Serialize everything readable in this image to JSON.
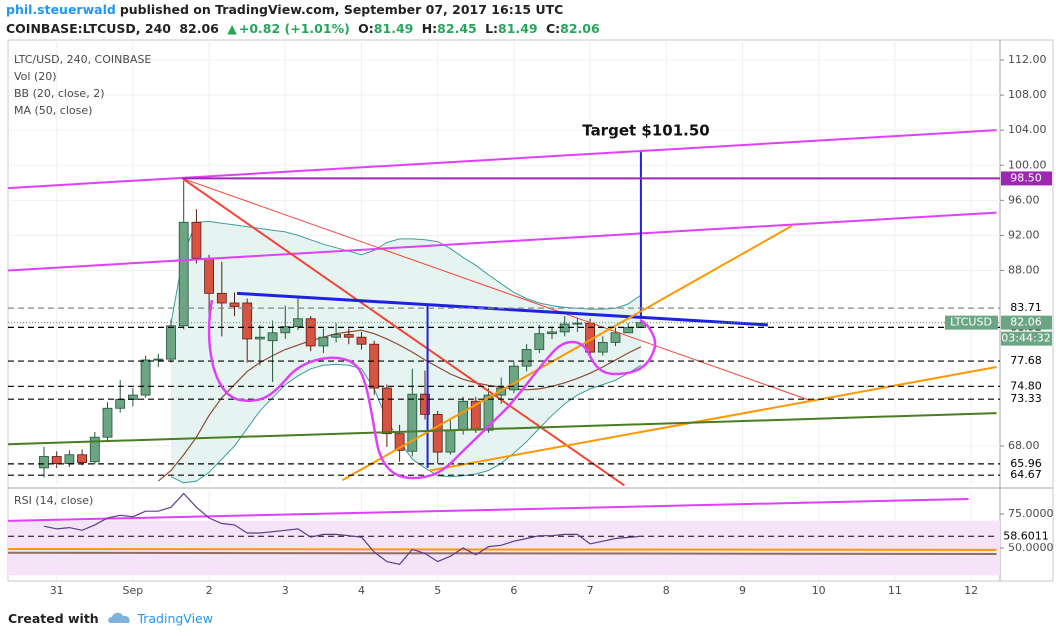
{
  "header": {
    "author": "phil.steuerwald",
    "published": "published on TradingView.com, September 07, 2017 16:15 UTC",
    "symbol": "COINBASE:LTCUSD, 240",
    "price": "82.06",
    "change": "+0.82 (+1.01%)",
    "ohlc": [
      [
        "O:",
        "81.49"
      ],
      [
        "H:",
        "82.45"
      ],
      [
        "L:",
        "81.49"
      ],
      [
        "C:",
        "82.06"
      ]
    ]
  },
  "footer": {
    "created": "Created with",
    "brand": "TradingView"
  },
  "chart_data": {
    "type": "candlestick",
    "title": "LTC/USD, 240, COINBASE",
    "indicators": [
      "Vol (20)",
      "BB (20, close, 2)",
      "MA (50, close)"
    ],
    "categories": [
      null,
      "31",
      null,
      null,
      null,
      null,
      null,
      "Sep",
      null,
      null,
      null,
      null,
      null,
      "2",
      null,
      null,
      null,
      null,
      null,
      "3",
      null,
      null,
      null,
      null,
      null,
      "4",
      null,
      null,
      null,
      null,
      null,
      "5",
      null,
      null,
      null,
      null,
      null,
      "6",
      null,
      null,
      null,
      null,
      null,
      "7",
      null,
      null,
      null,
      null,
      null,
      "8",
      null,
      null,
      null,
      null,
      null,
      "9",
      null,
      null,
      null,
      null,
      null,
      "10",
      null,
      null,
      null,
      null,
      null,
      "11",
      null,
      null,
      null,
      null,
      null,
      "12"
    ],
    "open": [
      65.5,
      66.8,
      66.0,
      67.0,
      66.2,
      69.0,
      72.3,
      73.3,
      73.8,
      77.8,
      77.9,
      81.7,
      93.5,
      89.4,
      85.4,
      84.3,
      84.3,
      80.2,
      80.0,
      80.9,
      81.6,
      82.5,
      79.4,
      80.4,
      80.7,
      80.4,
      79.6,
      74.6,
      69.4,
      67.4,
      73.9,
      71.6,
      67.3,
      69.8,
      73.1,
      69.8,
      73.8,
      74.4,
      77.1,
      79.0,
      80.8,
      81.0,
      81.9,
      82.0,
      78.7,
      79.8,
      80.9,
      81.49,
      null,
      null,
      null,
      null,
      null,
      null,
      null,
      null,
      null,
      null,
      null,
      null,
      null,
      null,
      null,
      null,
      null,
      null,
      null,
      null,
      null,
      null,
      null,
      null,
      null,
      null
    ],
    "high": [
      67.9,
      67.4,
      67.5,
      67.6,
      69.6,
      73.0,
      75.5,
      74.6,
      78.3,
      78.5,
      82.4,
      98.2,
      95.0,
      89.8,
      89.0,
      85.5,
      84.8,
      81.8,
      82.3,
      84.0,
      84.9,
      82.8,
      81.4,
      82.0,
      81.4,
      81.0,
      80.0,
      75.0,
      70.4,
      76.8,
      76.6,
      72.0,
      71.0,
      73.6,
      73.6,
      74.6,
      75.8,
      77.6,
      79.6,
      81.8,
      81.6,
      82.8,
      82.6,
      82.5,
      80.5,
      81.5,
      82.0,
      82.45,
      null,
      null,
      null,
      null,
      null,
      null,
      null,
      null,
      null,
      null,
      null,
      null,
      null,
      null,
      null,
      null,
      null,
      null,
      null,
      null,
      null,
      null,
      null,
      null,
      null,
      null
    ],
    "low": [
      64.4,
      65.5,
      65.6,
      65.8,
      65.9,
      68.6,
      71.8,
      72.5,
      73.5,
      77.0,
      77.5,
      81.3,
      88.8,
      83.0,
      80.5,
      82.8,
      77.5,
      77.2,
      75.3,
      80.2,
      81.2,
      78.8,
      78.6,
      79.8,
      79.6,
      79.0,
      73.8,
      67.9,
      66.2,
      66.8,
      71.0,
      66.0,
      67.0,
      69.3,
      69.5,
      69.5,
      72.8,
      74.0,
      76.5,
      78.6,
      80.2,
      80.5,
      81.0,
      78.2,
      78.3,
      79.4,
      80.9,
      81.49,
      null,
      null,
      null,
      null,
      null,
      null,
      null,
      null,
      null,
      null,
      null,
      null,
      null,
      null,
      null,
      null,
      null,
      null,
      null,
      null,
      null,
      null,
      null,
      null,
      null,
      null
    ],
    "close": [
      66.8,
      66.0,
      67.0,
      66.1,
      69.0,
      72.3,
      73.3,
      73.8,
      77.8,
      77.9,
      81.7,
      93.5,
      89.4,
      85.4,
      84.3,
      83.9,
      80.2,
      80.4,
      80.9,
      81.6,
      82.5,
      79.4,
      80.4,
      80.7,
      80.4,
      79.6,
      74.6,
      69.4,
      67.5,
      73.9,
      71.6,
      67.3,
      69.8,
      73.1,
      69.8,
      73.8,
      74.6,
      77.1,
      79.0,
      80.8,
      81.0,
      81.9,
      82.0,
      78.7,
      79.8,
      80.9,
      81.49,
      82.06,
      null,
      null,
      null,
      null,
      null,
      null,
      null,
      null,
      null,
      null,
      null,
      null,
      null,
      null,
      null,
      null,
      null,
      null,
      null,
      null,
      null,
      null,
      null,
      null,
      null,
      null
    ],
    "colors": {
      "up": "#6ba583",
      "up_edge": "#225437",
      "down": "#d75442",
      "down_edge": "#5b1a13"
    },
    "ma": {
      "color": "#8d4a35",
      "values": [
        null,
        null,
        null,
        null,
        null,
        null,
        null,
        null,
        null,
        64.0,
        65.2,
        67,
        69,
        71.5,
        73.5,
        75,
        76.5,
        77.5,
        78.3,
        79,
        79.5,
        80,
        80.4,
        80.8,
        81.0,
        81.2,
        80.8,
        80.2,
        79.5,
        78.7,
        77.8,
        77,
        76.2,
        75.6,
        75.2,
        74.9,
        74.7,
        74.5,
        74.4,
        74.5,
        74.8,
        75.2,
        75.7,
        76.3,
        77,
        77.8,
        78.6,
        79.3,
        null,
        null,
        null,
        null,
        null,
        null,
        null,
        null,
        null,
        null,
        null,
        null,
        null,
        null,
        null,
        null,
        null,
        null,
        null,
        null,
        null,
        null,
        null,
        null,
        null,
        null
      ]
    },
    "bb": {
      "color": "#3a9e9a",
      "fill": "#e6f4f1",
      "upper": [
        null,
        null,
        null,
        null,
        null,
        null,
        null,
        null,
        null,
        null,
        82,
        90,
        93.5,
        93.6,
        93.4,
        93.2,
        93,
        92.8,
        92.6,
        92.4,
        92,
        91.5,
        91,
        90.6,
        90.2,
        89.8,
        90.3,
        91.2,
        91.6,
        91.6,
        91.5,
        91.3,
        90.5,
        89.5,
        88.6,
        87.5,
        86.5,
        85.5,
        84.8,
        84.3,
        84.0,
        83.8,
        83.7,
        83.6,
        83.6,
        83.7,
        84.2,
        85.2,
        null,
        null,
        null,
        null,
        null,
        null,
        null,
        null,
        null,
        null,
        null,
        null,
        null,
        null,
        null,
        null,
        null,
        null,
        null,
        null,
        null,
        null,
        null,
        null,
        null,
        null
      ],
      "lower": [
        null,
        null,
        null,
        null,
        null,
        null,
        null,
        null,
        null,
        null,
        64.5,
        63.8,
        64,
        65,
        66.5,
        68,
        70,
        72,
        73.5,
        75,
        76,
        76.8,
        77.2,
        77.3,
        77.2,
        76.8,
        74.5,
        71,
        68.5,
        66.5,
        65.5,
        64.6,
        64.5,
        64.6,
        64.8,
        65.2,
        66,
        67.2,
        68.5,
        70,
        71.5,
        72.8,
        73.8,
        74.5,
        75,
        75.5,
        76.3,
        77.2,
        null,
        null,
        null,
        null,
        null,
        null,
        null,
        null,
        null,
        null,
        null,
        null,
        null,
        null,
        null,
        null,
        null,
        null,
        null,
        null,
        null,
        null,
        null,
        null,
        null,
        null
      ]
    },
    "ylim": [
      63.55,
      114.28
    ],
    "yticks": [
      {
        "value": 112,
        "label": "112.00"
      },
      {
        "value": 108,
        "label": "108.00"
      },
      {
        "value": 104,
        "label": "104.00"
      },
      {
        "value": 100,
        "label": "100.00"
      },
      {
        "value": 96,
        "label": "96.00"
      },
      {
        "value": 92,
        "label": "92.00"
      },
      {
        "value": 88,
        "label": "88.00"
      },
      {
        "value": 68,
        "label": "68.00"
      }
    ],
    "grid": true,
    "price_lines": [
      {
        "value": 98.5,
        "label": "98.50",
        "color": "#9c27b0",
        "bg": "#9c27b0",
        "text_color": "#ffffff",
        "dashed": false,
        "start": 10.9
      },
      {
        "value": 83.71,
        "color": "#888888",
        "bg": "#ffffff",
        "text_color": "#000000",
        "dashed": true
      },
      {
        "value": 81.52,
        "color": "#000000",
        "bg": "#ffffff",
        "text_color": "#000000",
        "dashed": true
      },
      {
        "value": 77.68,
        "color": "#000000",
        "bg": "#ffffff",
        "text_color": "#000000",
        "dashed": true
      },
      {
        "value": 74.8,
        "label": "74.80",
        "color": "#000000",
        "bg": "#ffffff",
        "text_color": "#000000",
        "dashed": true
      },
      {
        "value": 73.33,
        "color": "#000000",
        "bg": "#ffffff",
        "text_color": "#000000",
        "dashed": true
      },
      {
        "value": 65.96,
        "color": "#000000",
        "bg": "#ffffff",
        "text_color": "#000000",
        "dashed": true
      },
      {
        "value": 64.67,
        "color": "#000000",
        "bg": "#ffffff",
        "text_color": "#000000",
        "dashed": true
      }
    ],
    "last_price": {
      "symbol": "LTCUSD",
      "value": 82.06,
      "countdown": "03:44:32",
      "color": "#6ba583"
    },
    "annotation": "Target $101.50",
    "drawings": [
      {
        "color": "#e040fb",
        "width": 2,
        "points": [
          [
            -2.83,
            97.4
          ],
          [
            75,
            104.0
          ]
        ]
      },
      {
        "color": "#e040fb",
        "width": 2,
        "points": [
          [
            -2.83,
            88.0
          ],
          [
            75,
            94.6
          ]
        ]
      },
      {
        "color": "#f44336",
        "width": 1,
        "points": [
          [
            10.9,
            98.5
          ],
          [
            60.3,
            73.2
          ]
        ]
      },
      {
        "color": "#f44336",
        "width": 2,
        "points": [
          [
            10.9,
            98.5
          ],
          [
            45.7,
            63.5
          ]
        ]
      },
      {
        "color": "#1e22e0",
        "width": 3,
        "points": [
          [
            15.2,
            85.4
          ],
          [
            57.0,
            81.8
          ]
        ]
      },
      {
        "color": "#1e22e0",
        "width": 2,
        "points": [
          [
            30.2,
            84.1
          ],
          [
            30.2,
            65.5
          ]
        ]
      },
      {
        "color": "#1e22e0",
        "width": 2,
        "points": [
          [
            47,
            82.6
          ],
          [
            47,
            101.5
          ]
        ]
      },
      {
        "color": "#ff9800",
        "width": 2,
        "points": [
          [
            23.5,
            64.1
          ],
          [
            58.9,
            93.1
          ]
        ]
      },
      {
        "color": "#ff9800",
        "width": 2,
        "points": [
          [
            30.4,
            65.2
          ],
          [
            75,
            77.0
          ]
        ]
      },
      {
        "color": "#4a7c23",
        "width": 2,
        "points": [
          [
            -2.83,
            68.2
          ],
          [
            75,
            71.75
          ]
        ]
      }
    ],
    "rsi": {
      "title": "RSI (14, close)",
      "color": "#5b3c8c",
      "values": [
        66,
        64,
        65,
        63,
        67,
        72,
        74,
        73,
        77,
        77,
        80,
        90,
        80,
        72,
        68,
        67,
        61,
        61,
        62,
        63,
        64,
        58,
        60,
        60,
        59,
        58,
        47,
        40,
        38,
        49,
        46,
        40,
        44,
        50,
        45,
        51,
        52,
        55,
        57,
        59,
        59,
        60,
        60,
        53,
        55,
        57,
        57.8,
        58.6011,
        null,
        null,
        null,
        null,
        null,
        null,
        null,
        null,
        null,
        null,
        null,
        null,
        null,
        null,
        null,
        null,
        null,
        null,
        null,
        null,
        null,
        null,
        null,
        null,
        null,
        null
      ],
      "ylim": [
        26.5,
        92.6
      ],
      "yticks": [
        {
          "value": 75,
          "label": "75.0000"
        },
        {
          "value": 50,
          "label": "50.0000"
        }
      ],
      "band": [
        30,
        70
      ],
      "band_color": "#f5e4f8",
      "drawings": [
        {
          "color": "#e040fb",
          "width": 2,
          "dashed": false,
          "points": [
            [
              -2.83,
              69.9
            ],
            [
              72.8,
              86.0
            ]
          ]
        },
        {
          "color": "#000000",
          "width": 1,
          "dashed": true,
          "points": [
            [
              -2.83,
              58.6011
            ],
            [
              75,
              58.6011
            ]
          ]
        },
        {
          "color": "#ff9800",
          "width": 2,
          "dashed": false,
          "points": [
            [
              -2.83,
              49.3
            ],
            [
              75,
              48.6
            ]
          ]
        },
        {
          "color": "#8d6e63",
          "width": 2,
          "dashed": false,
          "points": [
            [
              -2.83,
              46.5
            ],
            [
              75,
              45.6
            ]
          ]
        }
      ]
    }
  }
}
